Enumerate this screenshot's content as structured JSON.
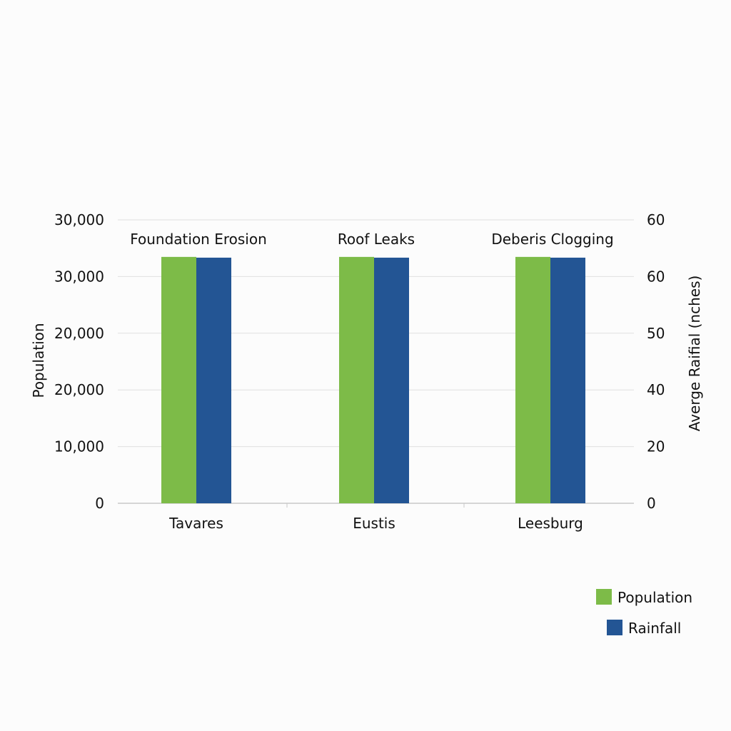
{
  "chart_data": {
    "type": "bar",
    "categories": [
      "Tavares",
      "Eustis",
      "Leesburg"
    ],
    "group_labels": [
      "Foundation Erosion",
      "Roof Leaks",
      "Deberis Clogging"
    ],
    "series": [
      {
        "name": "Population",
        "axis": "left",
        "color": "#7dbb48",
        "values": [
          32600,
          32600,
          32600
        ]
      },
      {
        "name": "Rainfall",
        "axis": "right",
        "color": "#235594",
        "values": [
          65,
          65,
          65
        ]
      }
    ],
    "left_axis": {
      "label": "Population",
      "ticks": [
        "0",
        "10,000",
        "20,000",
        "20,000",
        "30,000",
        "30,000"
      ],
      "ylim": [
        0,
        37500
      ]
    },
    "right_axis": {
      "label": "Averge Raifial (nches)",
      "ticks": [
        "0",
        "20",
        "40",
        "50",
        "60",
        "60"
      ],
      "ylim": [
        0,
        75
      ]
    },
    "grid": true,
    "legend": {
      "position": "bottom-right",
      "entries": [
        "Population",
        "Rainfall"
      ]
    }
  }
}
